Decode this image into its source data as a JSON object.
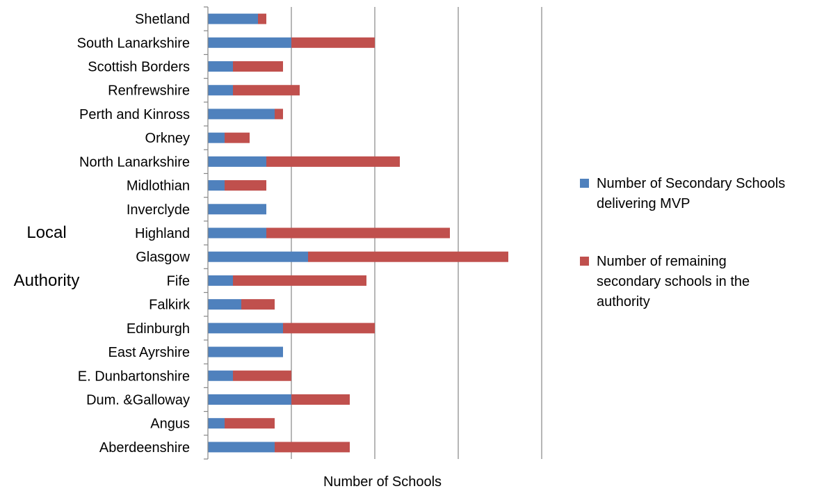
{
  "chart_data": {
    "type": "bar",
    "orientation": "horizontal",
    "stacked": true,
    "categories": [
      "Shetland",
      "South Lanarkshire",
      "Scottish Borders",
      "Renfrewshire",
      "Perth and Kinross",
      "Orkney",
      "North Lanarkshire",
      "Midlothian",
      "Inverclyde",
      "Highland",
      "Glasgow",
      "Fife",
      "Falkirk",
      "Edinburgh",
      "East Ayrshire",
      "E. Dunbartonshire",
      "Dum. &Galloway",
      "Angus",
      "Aberdeenshire"
    ],
    "series": [
      {
        "name": "Number of Secondary Schools delivering MVP",
        "color": "#4F81BD",
        "values": [
          6,
          10,
          3,
          3,
          8,
          2,
          7,
          2,
          7,
          7,
          12,
          3,
          4,
          9,
          9,
          3,
          10,
          2,
          8
        ]
      },
      {
        "name": "Number of remaining secondary schools in the authority",
        "color": "#C0504D",
        "values": [
          1,
          10,
          6,
          8,
          1,
          3,
          16,
          5,
          0,
          22,
          24,
          16,
          4,
          11,
          0,
          7,
          7,
          6,
          9
        ]
      }
    ],
    "xlim": [
      0,
      40
    ],
    "x_gridlines": [
      10,
      20,
      30,
      40
    ],
    "grid": true,
    "tick_labels_shown": false,
    "xlabel": "Number of Schools",
    "ylabel_lines": [
      "Local",
      "Authority"
    ],
    "legend_position": "right"
  },
  "legend": {
    "entries": [
      {
        "lines": [
          "Number of Secondary Schools",
          "delivering MVP"
        ],
        "color": "#4F81BD"
      },
      {
        "lines": [
          "Number of remaining",
          "secondary schools in the",
          "authority"
        ],
        "color": "#C0504D"
      }
    ]
  }
}
